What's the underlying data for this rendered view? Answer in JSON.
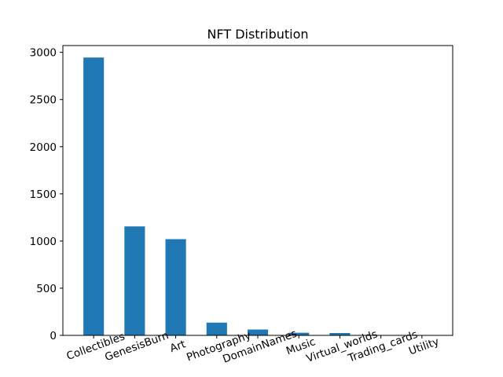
{
  "chart_data": {
    "type": "bar",
    "title": "NFT Distribution",
    "xlabel": "",
    "ylabel": "",
    "categories": [
      "Collectibles",
      "GenesisBurn",
      "Art",
      "Photography",
      "DomainNames",
      "Music",
      "Virtual_worlds",
      "Trading_cards",
      "Utility"
    ],
    "values": [
      2945,
      1155,
      1020,
      135,
      62,
      28,
      25,
      4,
      2
    ],
    "ylim": [
      0,
      3000
    ],
    "yticks": [
      "0",
      "500",
      "1000",
      "1500",
      "2000",
      "2500",
      "3000"
    ],
    "grid": false,
    "legend": "none",
    "bar_color": "#1f77b4",
    "xtick_rotation_deg": -20
  }
}
